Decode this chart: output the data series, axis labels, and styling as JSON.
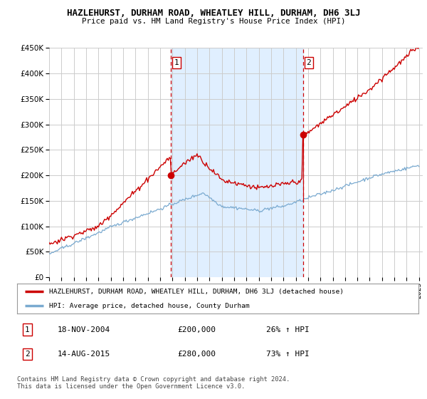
{
  "title": "HAZLEHURST, DURHAM ROAD, WHEATLEY HILL, DURHAM, DH6 3LJ",
  "subtitle": "Price paid vs. HM Land Registry's House Price Index (HPI)",
  "legend_line1": "HAZLEHURST, DURHAM ROAD, WHEATLEY HILL, DURHAM, DH6 3LJ (detached house)",
  "legend_line2": "HPI: Average price, detached house, County Durham",
  "sale1_date": "18-NOV-2004",
  "sale1_price": "£200,000",
  "sale1_hpi": "26% ↑ HPI",
  "sale1_year": 2004.88,
  "sale1_value": 200000,
  "sale2_date": "14-AUG-2015",
  "sale2_price": "£280,000",
  "sale2_hpi": "73% ↑ HPI",
  "sale2_year": 2015.62,
  "sale2_value": 280000,
  "ylim": [
    0,
    450000
  ],
  "xlim_start": 1995,
  "xlim_end": 2025,
  "red_line_color": "#cc0000",
  "blue_line_color": "#7aaad0",
  "shade_color": "#ddeeff",
  "dashed_vline_color": "#cc0000",
  "footer": "Contains HM Land Registry data © Crown copyright and database right 2024.\nThis data is licensed under the Open Government Licence v3.0.",
  "background_color": "#ffffff",
  "grid_color": "#cccccc",
  "xticks": [
    1995,
    1996,
    1997,
    1998,
    1999,
    2000,
    2001,
    2002,
    2003,
    2004,
    2005,
    2006,
    2007,
    2008,
    2009,
    2010,
    2011,
    2012,
    2013,
    2014,
    2015,
    2016,
    2017,
    2018,
    2019,
    2020,
    2021,
    2022,
    2023,
    2024,
    2025
  ]
}
